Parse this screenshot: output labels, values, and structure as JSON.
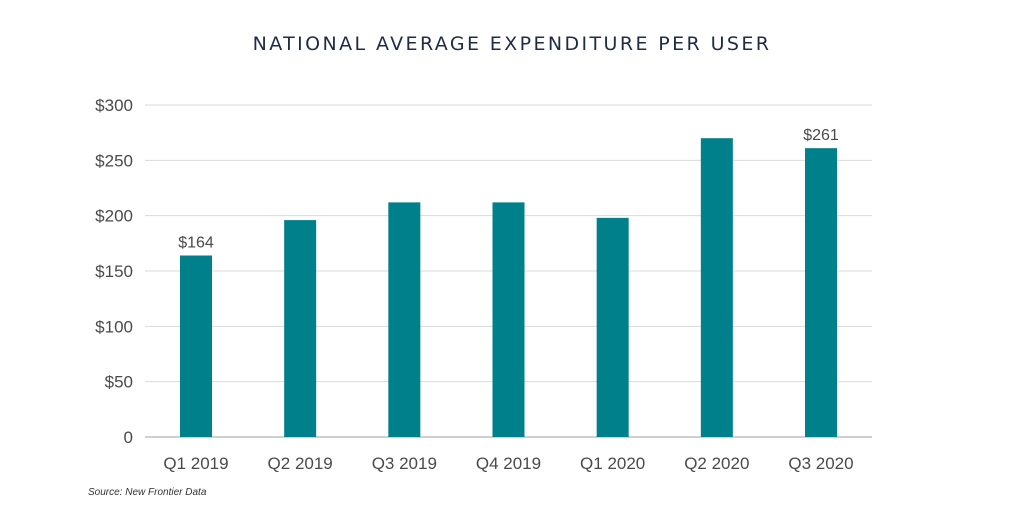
{
  "title": "NATIONAL AVERAGE EXPENDITURE PER USER",
  "source": "Source: New Frontier Data",
  "colors": {
    "bar": "#00808a",
    "grid": "#d9d9d9",
    "axis": "#bfbfbf",
    "text": "#4a4a4a",
    "title": "#1f2d44"
  },
  "chart_data": {
    "type": "bar",
    "title": "NATIONAL AVERAGE EXPENDITURE PER USER",
    "xlabel": "",
    "ylabel": "",
    "categories": [
      "Q1 2019",
      "Q2 2019",
      "Q3 2019",
      "Q4 2019",
      "Q1 2020",
      "Q2 2020",
      "Q3 2020"
    ],
    "values": [
      164,
      196,
      212,
      212,
      198,
      270,
      261
    ],
    "data_labels": [
      "$164",
      "",
      "",
      "",
      "",
      "",
      "$261"
    ],
    "ylim": [
      0,
      300
    ],
    "yticks": [
      0,
      50,
      100,
      150,
      200,
      250,
      300
    ],
    "ytick_labels": [
      "0",
      "$50",
      "$100",
      "$150",
      "$200",
      "$250",
      "$300"
    ],
    "grid": true,
    "legend": "none"
  }
}
